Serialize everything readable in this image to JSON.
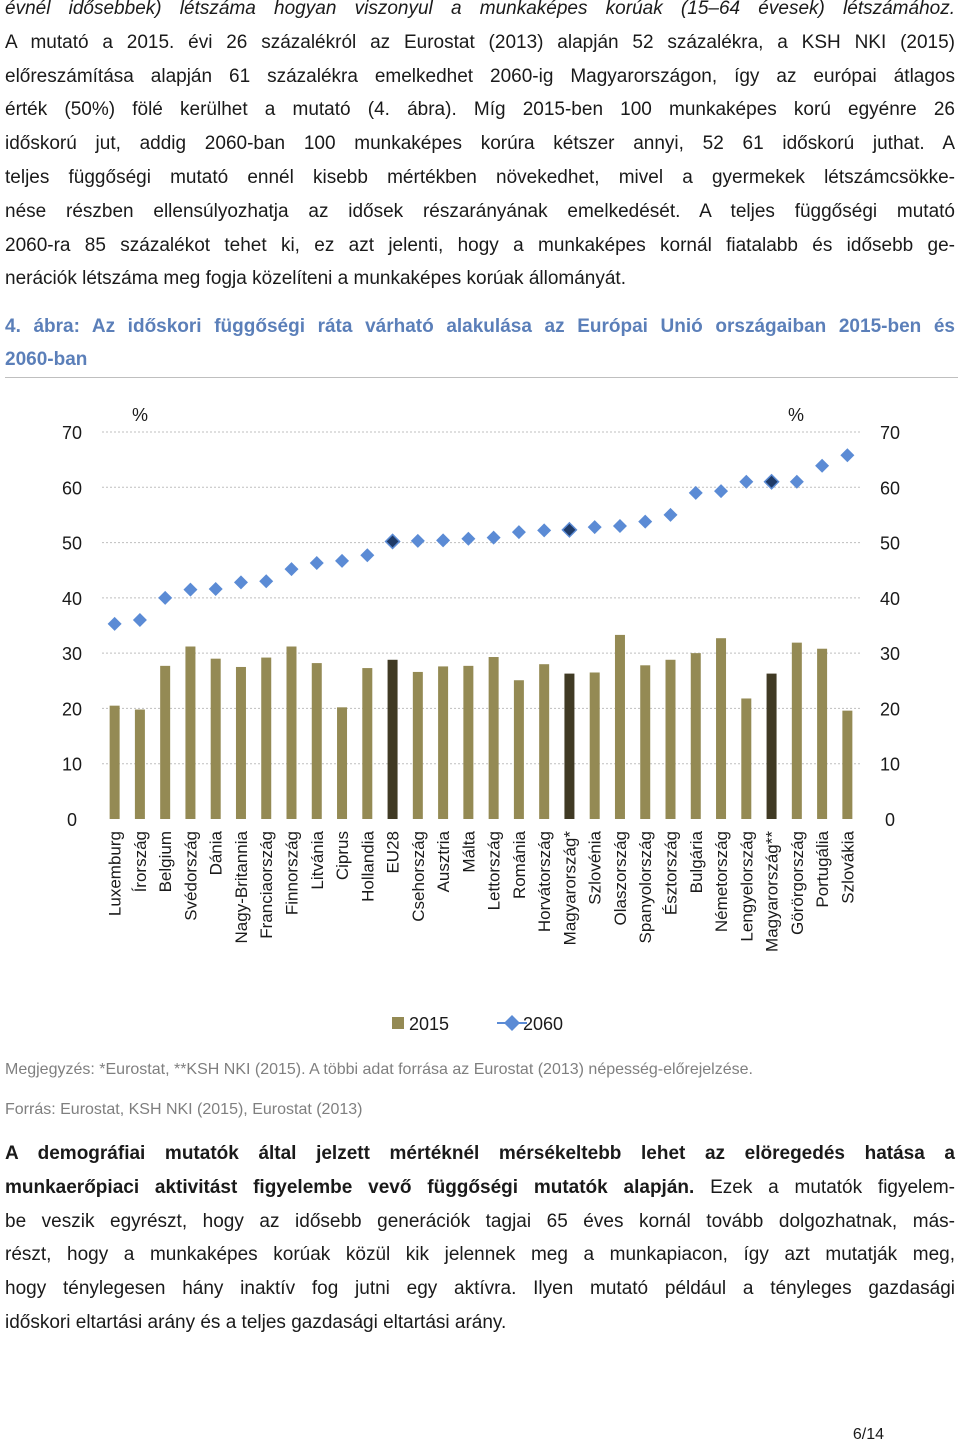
{
  "intro": {
    "lines": [
      "évnél idősebbek) létszáma hogyan viszonyul a munkaképes korúak (15–64 évesek) létszámához.",
      "A mutató a 2015. évi 26 százalékról az Eurostat (2013) alapján 52 százalékra, a KSH NKI (2015)",
      "előreszámítása alapján 61 százalékra emelkedhet 2060-ig Magyarországon, így az európai átlagos",
      "érték (50%) fölé kerülhet a mutató (4. ábra). Míg 2015-ben 100 munkaképes korú egyénre 26",
      "időskorú jut, addig 2060-ban 100 munkaképes korúra kétszer annyi, 52 61 időskorú juthat. A",
      "teljes függőségi mutató ennél kisebb mértékben növekedhet, mivel a gyermekek létszámcsökke-",
      "nése részben ellensúlyozhatja az idősek részarányának emelkedését. A teljes függőségi mutató",
      "2060-ra 85 százalékot tehet ki, ez azt jelenti, hogy a munkaképes kornál fiatalabb és idősebb ge-",
      "nerációk létszáma meg fogja közelíteni a munkaképes korúak állományát."
    ]
  },
  "figure": {
    "caption_lines": [
      "4. ábra: Az időskori függőségi ráta várható alakulása az Európai Unió országaiban 2015-ben és",
      "2060-ban"
    ]
  },
  "chart_data": {
    "type": "bar",
    "ylim": [
      0,
      70
    ],
    "y_ticks": [
      "0",
      "10",
      "20",
      "30",
      "40",
      "50",
      "60",
      "70"
    ],
    "y_unit_left": "%",
    "y_unit_right": "%",
    "grid": true,
    "legend_position": "bottom",
    "colors": {
      "bar": "#948a54",
      "bar_highlight": "#403a24",
      "marker": "#5b8bd5",
      "marker_highlight": "#1f3b68",
      "grid": "#bfbfbf"
    },
    "categories": [
      "Luxemburg",
      "Írország",
      "Belgium",
      "Svédország",
      "Dánia",
      "Nagy-Britannia",
      "Franciaország",
      "Finnország",
      "Litvánia",
      "Ciprus",
      "Hollandia",
      "EU28",
      "Csehország",
      "Ausztria",
      "Málta",
      "Lettország",
      "Románia",
      "Horvátország",
      "Magyarország*",
      "Szlovénia",
      "Olaszország",
      "Spanyolország",
      "Észtország",
      "Bulgária",
      "Németország",
      "Lengyelország",
      "Magyarország**",
      "Görörgország",
      "Portugália",
      "Szlovákia"
    ],
    "highlight": [
      "EU28",
      "Magyarország*",
      "Magyarország**"
    ],
    "series": [
      {
        "name": "2015",
        "kind": "bar",
        "values": [
          20.5,
          19.8,
          27.7,
          31.2,
          29.0,
          27.5,
          29.2,
          31.2,
          28.2,
          20.2,
          27.3,
          28.8,
          26.6,
          27.6,
          27.7,
          29.3,
          25.1,
          28.0,
          26.3,
          26.5,
          33.3,
          27.8,
          28.8,
          30.0,
          32.7,
          21.8,
          26.3,
          31.9,
          30.8,
          19.6
        ]
      },
      {
        "name": "2060",
        "kind": "scatter",
        "values": [
          35.3,
          36.0,
          40.0,
          41.5,
          41.6,
          42.8,
          43.0,
          45.2,
          46.3,
          46.7,
          47.7,
          50.2,
          50.3,
          50.4,
          50.7,
          50.9,
          51.9,
          52.2,
          52.3,
          52.8,
          53.0,
          53.8,
          55.0,
          59.0,
          59.3,
          61.0,
          61.0,
          61.0,
          63.9,
          65.8
        ]
      }
    ]
  },
  "notes": {
    "megjegyzes": "Megjegyzés: *Eurostat, **KSH NKI (2015). A többi adat forrása az Eurostat (2013) népesség-előrejelzése.",
    "forras": "Forrás: Eurostat, KSH NKI (2015), Eurostat (2013)"
  },
  "outro": {
    "line1_bold": "A demográfiai mutatók által jelzett mértéknél mérsékeltebb lehet az elöregedés hatása a",
    "line2_bold": "munkaerőpiaci aktivitást figyelembe vevő függőségi mutatók alapján.",
    "line2_rest": " Ezek a mutatók figyelem-",
    "lines": [
      "be veszik egyrészt, hogy az idősebb generációk tagjai 65 éves kornál tovább dolgozhatnak, más-",
      "részt, hogy a munkaképes korúak közül kik jelennek meg a munkapiacon, így azt mutatják meg,",
      "hogy ténylegesen hány inaktív fog jutni egy aktívra. Ilyen mutató például a tényleges gazdasági",
      "időskori eltartási arány és a teljes gazdasági eltartási arány."
    ]
  },
  "page": {
    "number": "6/14"
  }
}
